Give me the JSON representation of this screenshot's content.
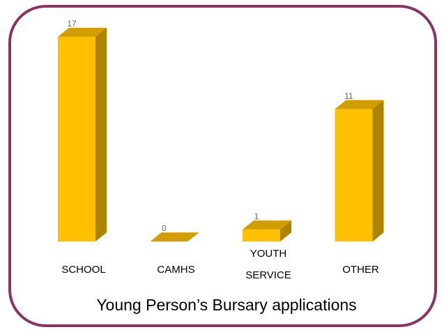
{
  "chart_data": {
    "type": "bar3d",
    "title": "Young Person’s Bursary applications",
    "categories": [
      "SCHOOL",
      "CAMHS",
      "YOUTH SERVICE",
      "OTHER"
    ],
    "values": [
      17,
      0,
      1,
      11
    ],
    "color": "#ffc000"
  }
}
